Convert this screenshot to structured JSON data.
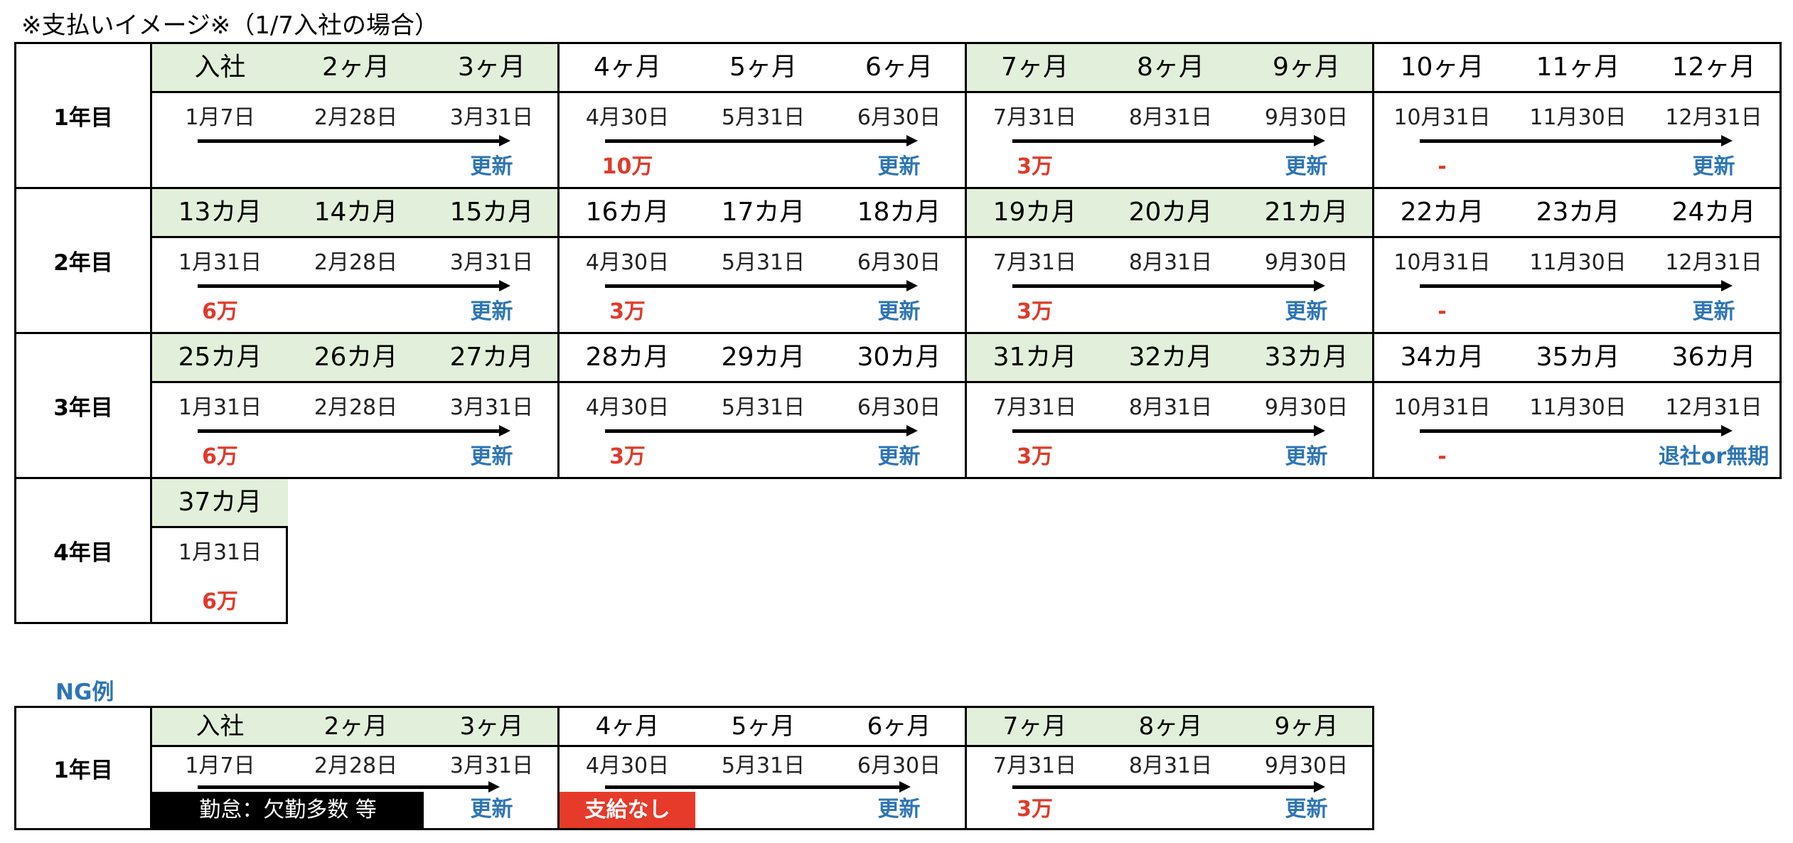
{
  "caption": "※支払いイメージ※（1/7入社の場合）",
  "ng_title": "NG例",
  "years": [
    {
      "label": "1年目",
      "quarters": [
        {
          "green": true,
          "months": [
            "入社",
            "2ヶ月",
            "3ヶ月"
          ],
          "dates": [
            "1月7日",
            "2月28日",
            "3月31日"
          ],
          "notes": [
            "",
            "",
            "更新"
          ]
        },
        {
          "green": false,
          "months": [
            "4ヶ月",
            "5ヶ月",
            "6ヶ月"
          ],
          "dates": [
            "4月30日",
            "5月31日",
            "6月30日"
          ],
          "notes": [
            "10万",
            "",
            "更新"
          ]
        },
        {
          "green": true,
          "months": [
            "7ヶ月",
            "8ヶ月",
            "9ヶ月"
          ],
          "dates": [
            "7月31日",
            "8月31日",
            "9月30日"
          ],
          "notes": [
            "3万",
            "",
            "更新"
          ]
        },
        {
          "green": false,
          "months": [
            "10ヶ月",
            "11ヶ月",
            "12ヶ月"
          ],
          "dates": [
            "10月31日",
            "11月30日",
            "12月31日"
          ],
          "notes": [
            "-",
            "",
            "更新"
          ]
        }
      ]
    },
    {
      "label": "2年目",
      "quarters": [
        {
          "green": true,
          "months": [
            "13カ月",
            "14カ月",
            "15カ月"
          ],
          "dates": [
            "1月31日",
            "2月28日",
            "3月31日"
          ],
          "notes": [
            "6万",
            "",
            "更新"
          ]
        },
        {
          "green": false,
          "months": [
            "16カ月",
            "17カ月",
            "18カ月"
          ],
          "dates": [
            "4月30日",
            "5月31日",
            "6月30日"
          ],
          "notes": [
            "3万",
            "",
            "更新"
          ]
        },
        {
          "green": true,
          "months": [
            "19カ月",
            "20カ月",
            "21カ月"
          ],
          "dates": [
            "7月31日",
            "8月31日",
            "9月30日"
          ],
          "notes": [
            "3万",
            "",
            "更新"
          ]
        },
        {
          "green": false,
          "months": [
            "22カ月",
            "23カ月",
            "24カ月"
          ],
          "dates": [
            "10月31日",
            "11月30日",
            "12月31日"
          ],
          "notes": [
            "-",
            "",
            "更新"
          ]
        }
      ]
    },
    {
      "label": "3年目",
      "quarters": [
        {
          "green": true,
          "months": [
            "25カ月",
            "26カ月",
            "27カ月"
          ],
          "dates": [
            "1月31日",
            "2月28日",
            "3月31日"
          ],
          "notes": [
            "6万",
            "",
            "更新"
          ]
        },
        {
          "green": false,
          "months": [
            "28カ月",
            "29カ月",
            "30カ月"
          ],
          "dates": [
            "4月30日",
            "5月31日",
            "6月30日"
          ],
          "notes": [
            "3万",
            "",
            "更新"
          ]
        },
        {
          "green": true,
          "months": [
            "31カ月",
            "32カ月",
            "33カ月"
          ],
          "dates": [
            "7月31日",
            "8月31日",
            "9月30日"
          ],
          "notes": [
            "3万",
            "",
            "更新"
          ]
        },
        {
          "green": false,
          "months": [
            "34カ月",
            "35カ月",
            "36カ月"
          ],
          "dates": [
            "10月31日",
            "11月30日",
            "12月31日"
          ],
          "notes": [
            "-",
            "",
            "退社or無期"
          ]
        }
      ]
    },
    {
      "label": "4年目",
      "quarters": [
        {
          "green": true,
          "months": [
            "37カ月"
          ],
          "dates": [
            "1月31日"
          ],
          "notes": [
            "6万"
          ],
          "single": true
        }
      ]
    }
  ],
  "ng": {
    "label": "1年目",
    "quarters": [
      {
        "green": true,
        "months": [
          "入社",
          "2ヶ月",
          "3ヶ月"
        ],
        "dates": [
          "1月7日",
          "2月28日",
          "3月31日"
        ],
        "notes": [
          "",
          "",
          "更新"
        ],
        "box": "勤怠：欠勤多数 等"
      },
      {
        "green": false,
        "months": [
          "4ヶ月",
          "5ヶ月",
          "6ヶ月"
        ],
        "dates": [
          "4月30日",
          "5月31日",
          "6月30日"
        ],
        "notes": [
          "",
          "",
          "更新"
        ],
        "box": "支給なし"
      },
      {
        "green": true,
        "months": [
          "7ヶ月",
          "8ヶ月",
          "9ヶ月"
        ],
        "dates": [
          "7月31日",
          "8月31日",
          "9月30日"
        ],
        "notes": [
          "3万",
          "",
          "更新"
        ]
      }
    ]
  },
  "colors": {
    "green_header": "#e2efda",
    "note_red": "#e03a2a",
    "note_blue": "#2e75b6",
    "ng_red_box": "#e63b2a"
  }
}
